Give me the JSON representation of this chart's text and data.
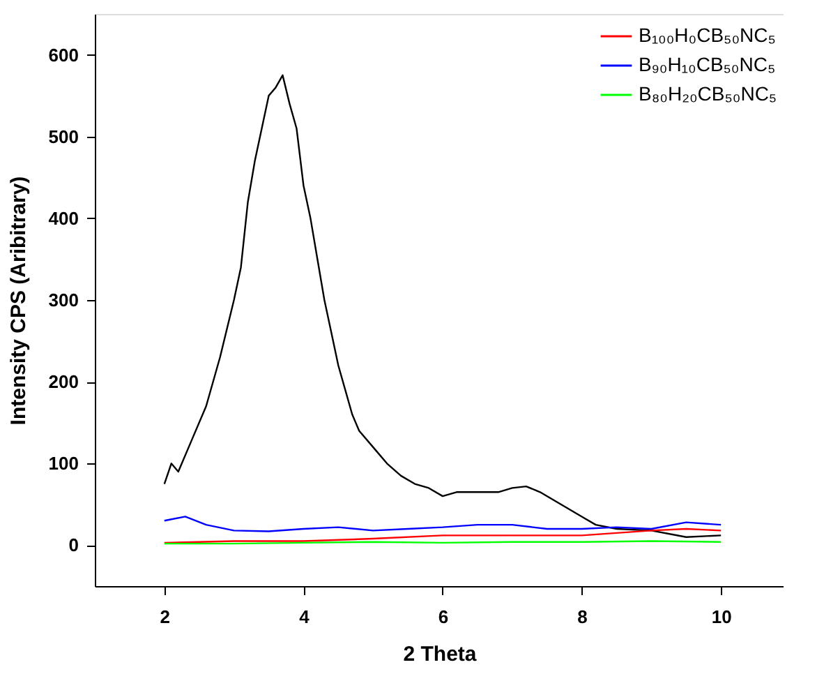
{
  "chart_data": {
    "type": "line",
    "xlabel": "2 Theta",
    "ylabel": "Intensity CPS (Aribitrary)",
    "xlim": [
      1,
      10.9
    ],
    "xticks": [
      2,
      4,
      6,
      8,
      10
    ],
    "ylim": [
      -50,
      650
    ],
    "yticks": [
      0,
      100,
      200,
      300,
      400,
      500,
      600
    ],
    "grid": false,
    "legend": "top right",
    "marker": "none",
    "line_style": "solid",
    "series": [
      {
        "color": "#000000",
        "x": [
          2.0,
          2.1,
          2.2,
          2.4,
          2.6,
          2.8,
          3.0,
          3.1,
          3.2,
          3.3,
          3.4,
          3.5,
          3.6,
          3.7,
          3.8,
          3.9,
          4.0,
          4.1,
          4.2,
          4.3,
          4.4,
          4.5,
          4.6,
          4.7,
          4.8,
          5.0,
          5.2,
          5.4,
          5.6,
          5.8,
          6.0,
          6.2,
          6.5,
          6.8,
          7.0,
          7.2,
          7.4,
          7.6,
          7.8,
          8.0,
          8.2,
          8.5,
          9.0,
          9.5,
          10.0
        ],
        "values": [
          75,
          100,
          90,
          130,
          170,
          230,
          300,
          340,
          420,
          470,
          510,
          550,
          560,
          575,
          540,
          510,
          440,
          400,
          350,
          300,
          260,
          220,
          190,
          160,
          140,
          120,
          100,
          85,
          75,
          70,
          60,
          65,
          65,
          65,
          70,
          72,
          65,
          55,
          45,
          35,
          25,
          20,
          18,
          10,
          12
        ]
      },
      {
        "name": "B₁₀₀H₀CB₅₀NC₅",
        "color": "#ff0000",
        "x": [
          2,
          3,
          4,
          5,
          6,
          7,
          8,
          8.5,
          9,
          9.5,
          10
        ],
        "values": [
          3,
          5,
          5,
          8,
          12,
          12,
          12,
          15,
          18,
          20,
          18
        ]
      },
      {
        "name": "B₉₀H₁₀CB₅₀NC₅",
        "color": "#0000ff",
        "x": [
          2,
          2.3,
          2.6,
          3,
          3.5,
          4,
          4.5,
          5,
          5.5,
          6,
          6.5,
          7,
          7.5,
          8,
          8.5,
          9,
          9.5,
          10
        ],
        "values": [
          30,
          35,
          25,
          18,
          17,
          20,
          22,
          18,
          20,
          22,
          25,
          25,
          20,
          20,
          22,
          20,
          28,
          25
        ]
      },
      {
        "name": "B₈₀H₂₀CB₅₀NC₅",
        "color": "#00ff00",
        "x": [
          2,
          3,
          4,
          5,
          6,
          7,
          8,
          9,
          10
        ],
        "values": [
          2,
          2,
          3,
          4,
          3,
          4,
          4,
          5,
          4
        ]
      }
    ]
  }
}
